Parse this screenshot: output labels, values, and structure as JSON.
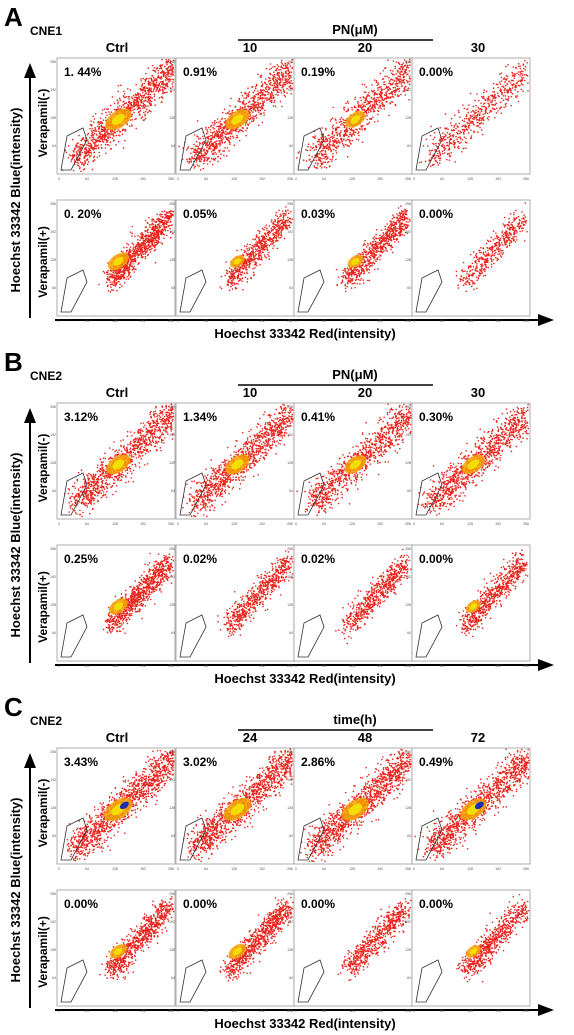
{
  "figure": {
    "panels": [
      {
        "letter": "A",
        "cell_line": "CNE1",
        "treatment_title": "PN(μM)",
        "column_labels": [
          "Ctrl",
          "10",
          "20",
          "30"
        ],
        "row_labels": [
          "Verapamil(-)",
          "Verapamil(+)"
        ],
        "y_axis_title": "Hoechst 33342 Blue(intensity)",
        "x_axis_title": "Hoechst 33342 Red(intensity)",
        "percentages": [
          [
            "1. 44%",
            "0.91%",
            "0.19%",
            "0.00%"
          ],
          [
            "0. 20%",
            "0.05%",
            "0.03%",
            "0.00%"
          ]
        ],
        "density": [
          [
            0.9,
            0.8,
            0.6,
            0.25
          ],
          [
            0.65,
            0.35,
            0.4,
            0.1
          ]
        ]
      },
      {
        "letter": "B",
        "cell_line": "CNE2",
        "treatment_title": "PN(μM)",
        "column_labels": [
          "Ctrl",
          "10",
          "20",
          "30"
        ],
        "row_labels": [
          "Verapamil(-)",
          "Verapamil(+)"
        ],
        "y_axis_title": "Hoechst 33342 Blue(intensity)",
        "x_axis_title": "Hoechst 33342 Red(intensity)",
        "percentages": [
          [
            "3.12%",
            "1.34%",
            "0.41%",
            "0.30%"
          ],
          [
            "0.25%",
            "0.02%",
            "0.02%",
            "0.00%"
          ]
        ],
        "density": [
          [
            0.8,
            0.8,
            0.7,
            0.75
          ],
          [
            0.55,
            0.3,
            0.3,
            0.35
          ]
        ]
      },
      {
        "letter": "C",
        "cell_line": "CNE2",
        "treatment_title": "time(h)",
        "column_labels": [
          "Ctrl",
          "24",
          "48",
          "72"
        ],
        "row_labels": [
          "Verapamil(-)",
          "Verapamil(+)"
        ],
        "y_axis_title": "Hoechst 33342 Blue(intensity)",
        "x_axis_title": "Hoechst 33342 Red(intensity)",
        "percentages": [
          [
            "3.43%",
            "3.02%",
            "2.86%",
            "0.49%"
          ],
          [
            "0.00%",
            "0.00%",
            "0.00%",
            "0.00%"
          ]
        ],
        "density": [
          [
            1.0,
            0.95,
            0.95,
            0.9
          ],
          [
            0.45,
            0.5,
            0.3,
            0.35
          ]
        ]
      }
    ],
    "tick_labels": [
      "0",
      "64",
      "128",
      "192",
      "256"
    ],
    "colors": {
      "dots": "#e8231c",
      "core": "#f5a000",
      "hot": "#f2e600",
      "peak": "#1b2fb0",
      "gate": "#333333"
    }
  }
}
